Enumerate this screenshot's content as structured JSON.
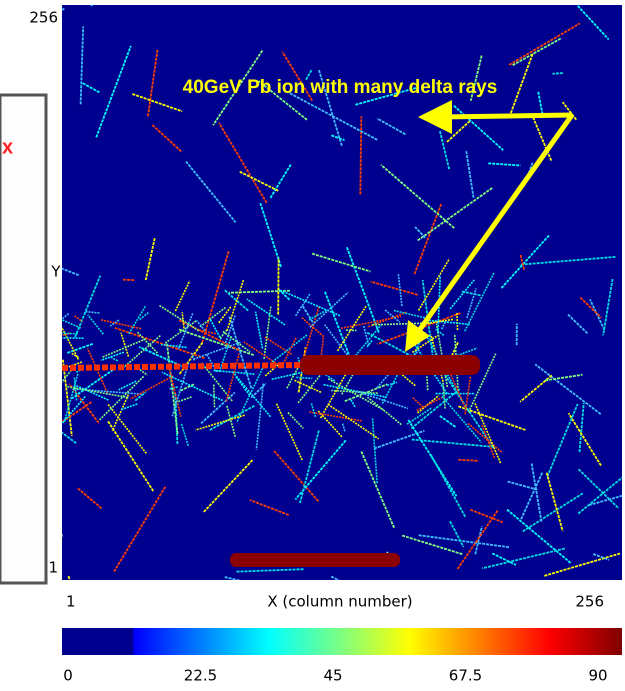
{
  "chart_data": {
    "type": "image",
    "left_panel_text": "x",
    "annotation": "40GeV Pb ion with many delta rays",
    "xlabel": "X (column number)",
    "ylabel": "Y",
    "xlim": [
      1,
      256
    ],
    "xticks": [
      1,
      256
    ],
    "ylim": [
      1,
      256
    ],
    "yticks": [
      1,
      256
    ],
    "colorbar_lim": [
      0,
      90
    ],
    "colorbar_ticks": [
      0,
      22.5,
      45,
      67.5,
      90
    ]
  }
}
